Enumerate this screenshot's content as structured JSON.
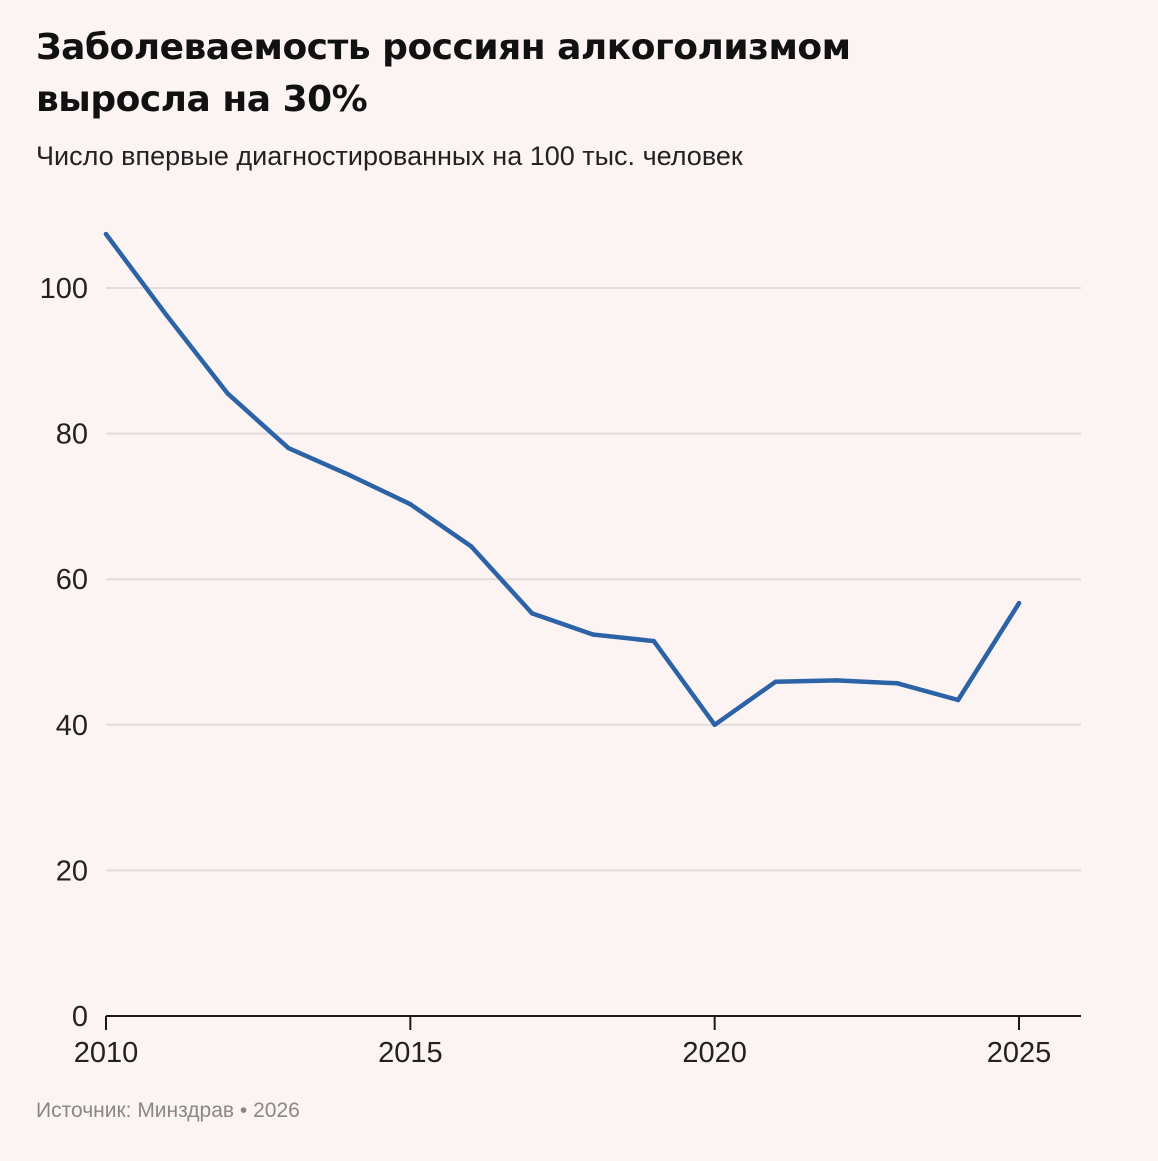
{
  "header": {
    "title": "Заболеваемость россиян алкоголизмом выросла на 30%",
    "subtitle": "Число впервые диагностированных на 100 тыс. человек"
  },
  "footer": {
    "source": "Источник: Минздрав • 2026"
  },
  "colors": {
    "line": "#2b63a6",
    "grid": "#e3dcdc",
    "axis": "#1a1a1a",
    "background": "#fcf3f3"
  },
  "chart_data": {
    "type": "line",
    "title": "Заболеваемость россиян алкоголизмом выросла на 30%",
    "subtitle": "Число впервые диагностированных на 100 тыс. человек",
    "xlabel": "",
    "ylabel": "",
    "x": [
      2010,
      2011,
      2012,
      2013,
      2014,
      2015,
      2016,
      2017,
      2018,
      2019,
      2020,
      2021,
      2022,
      2023,
      2024,
      2025
    ],
    "series": [
      {
        "name": "",
        "values": [
          107.4,
          96.2,
          85.5,
          78.0,
          74.3,
          70.3,
          64.5,
          55.3,
          52.4,
          51.5,
          40.0,
          45.9,
          46.1,
          45.7,
          43.4,
          56.7
        ]
      }
    ],
    "xlim": [
      2010,
      2026
    ],
    "ylim": [
      0,
      110
    ],
    "xticks": [
      2010,
      2015,
      2020,
      2025
    ],
    "yticks": [
      0,
      20,
      40,
      60,
      80,
      100
    ],
    "grid": "horizontal",
    "legend": "none"
  }
}
